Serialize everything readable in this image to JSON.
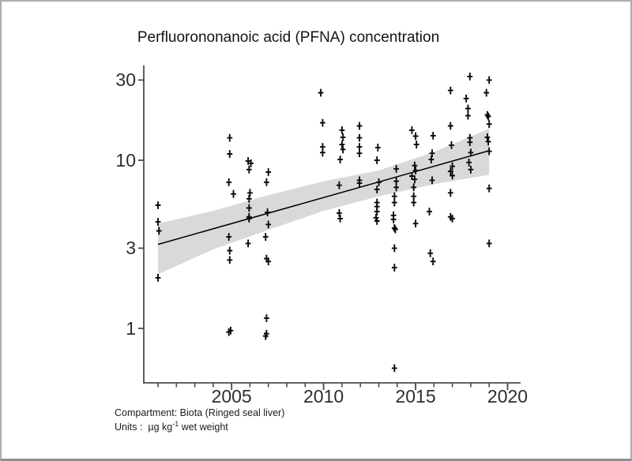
{
  "figure": {
    "title": "Perfluorononanoic acid (PFNA) concentration",
    "footnotes": {
      "compartment": "Compartment: Biota (Ringed seal liver)",
      "units_label": "Units :  ",
      "units_value": "µg kg",
      "units_superscript": "-1",
      "units_suffix": " wet weight"
    }
  },
  "chart_data": {
    "type": "scatter",
    "title": "Perfluorononanoic acid (PFNA) concentration",
    "xlabel": "",
    "ylabel": "",
    "x_axis": {
      "range": [
        2000.25,
        2020.7
      ],
      "ticks_major": [
        2005,
        2010,
        2015,
        2020
      ],
      "ticks_minor": [
        2001,
        2002,
        2003,
        2004,
        2005,
        2006,
        2007,
        2008,
        2009,
        2010,
        2011,
        2012,
        2013,
        2014,
        2015,
        2016,
        2017,
        2018,
        2019,
        2020
      ]
    },
    "y_axis": {
      "scale": "log",
      "range": [
        0.47,
        36.5
      ],
      "ticks": [
        30,
        10,
        3,
        1
      ]
    },
    "grid": "off",
    "legend": "none",
    "marker_style": "plus",
    "colors": {
      "marker": "#0a0a0a",
      "trend_line": "#000000",
      "confidence_band": "#d9d9d9",
      "axis": "#4b4b4b",
      "text": "#141414"
    },
    "trend_line": {
      "x": [
        2001,
        2019
      ],
      "y": [
        3.16,
        11.4
      ]
    },
    "confidence_band": {
      "years": [
        2001,
        2004,
        2007,
        2010,
        2013,
        2016,
        2019
      ],
      "upper": [
        4.2,
        5.0,
        6.2,
        7.5,
        8.7,
        11.2,
        15.4
      ],
      "lower": [
        2.1,
        2.95,
        3.85,
        5.0,
        6.1,
        7.2,
        8.2
      ]
    },
    "series": [
      {
        "name": "PFNA concentration (ug/kg wet weight, ringed seal liver)",
        "points": [
          [
            2001.0,
            5.4
          ],
          [
            2001.0,
            4.3
          ],
          [
            2001.05,
            3.8
          ],
          [
            2001.0,
            2.0
          ],
          [
            2004.9,
            13.6
          ],
          [
            2004.9,
            10.9
          ],
          [
            2004.85,
            7.4
          ],
          [
            2005.1,
            6.3
          ],
          [
            2004.85,
            3.5
          ],
          [
            2004.9,
            2.9
          ],
          [
            2004.9,
            2.55
          ],
          [
            2004.85,
            0.95
          ],
          [
            2004.95,
            0.97
          ],
          [
            2005.9,
            9.9
          ],
          [
            2006.05,
            9.6
          ],
          [
            2005.95,
            8.8
          ],
          [
            2006.0,
            6.4
          ],
          [
            2005.95,
            5.9
          ],
          [
            2005.95,
            5.2
          ],
          [
            2005.95,
            4.6
          ],
          [
            2005.95,
            4.5
          ],
          [
            2005.9,
            3.2
          ],
          [
            2007.0,
            8.5
          ],
          [
            2006.9,
            7.4
          ],
          [
            2006.95,
            4.9
          ],
          [
            2007.0,
            4.15
          ],
          [
            2006.85,
            3.5
          ],
          [
            2006.9,
            2.6
          ],
          [
            2007.0,
            2.5
          ],
          [
            2006.9,
            1.15
          ],
          [
            2006.85,
            0.9
          ],
          [
            2006.9,
            0.93
          ],
          [
            2009.85,
            25.2
          ],
          [
            2009.95,
            16.7
          ],
          [
            2009.95,
            12.0
          ],
          [
            2009.95,
            11.1
          ],
          [
            2010.85,
            7.1
          ],
          [
            2010.85,
            4.85
          ],
          [
            2011.0,
            15.1
          ],
          [
            2011.05,
            13.7
          ],
          [
            2011.0,
            12.4
          ],
          [
            2011.05,
            11.6
          ],
          [
            2010.9,
            10.1
          ],
          [
            2010.9,
            4.5
          ],
          [
            2011.95,
            16.0
          ],
          [
            2011.95,
            13.6
          ],
          [
            2011.95,
            12.0
          ],
          [
            2011.95,
            11.0
          ],
          [
            2011.95,
            7.6
          ],
          [
            2011.95,
            7.3
          ],
          [
            2012.95,
            11.9
          ],
          [
            2012.9,
            10.0
          ],
          [
            2013.0,
            7.4
          ],
          [
            2012.9,
            6.7
          ],
          [
            2012.9,
            5.6
          ],
          [
            2012.9,
            5.3
          ],
          [
            2012.9,
            4.95
          ],
          [
            2012.85,
            4.55
          ],
          [
            2012.9,
            4.35
          ],
          [
            2013.95,
            8.9
          ],
          [
            2013.95,
            7.5
          ],
          [
            2013.95,
            6.9
          ],
          [
            2013.85,
            6.1
          ],
          [
            2013.85,
            5.6
          ],
          [
            2013.8,
            4.7
          ],
          [
            2013.8,
            4.45
          ],
          [
            2013.85,
            3.95
          ],
          [
            2013.9,
            3.88
          ],
          [
            2013.85,
            3.0
          ],
          [
            2013.85,
            2.3
          ],
          [
            2013.85,
            0.58
          ],
          [
            2014.8,
            15.1
          ],
          [
            2014.8,
            8.05
          ],
          [
            2014.9,
            6.9
          ],
          [
            2014.9,
            6.1
          ],
          [
            2014.9,
            5.6
          ],
          [
            2015.0,
            13.9
          ],
          [
            2015.05,
            12.4
          ],
          [
            2014.95,
            9.3
          ],
          [
            2015.0,
            8.7
          ],
          [
            2014.95,
            7.7
          ],
          [
            2015.0,
            4.2
          ],
          [
            2015.95,
            14.0
          ],
          [
            2015.9,
            11.0
          ],
          [
            2015.85,
            10.1
          ],
          [
            2015.9,
            7.6
          ],
          [
            2015.75,
            4.95
          ],
          [
            2015.8,
            2.8
          ],
          [
            2015.95,
            2.5
          ],
          [
            2016.9,
            26.0
          ],
          [
            2016.9,
            16.0
          ],
          [
            2016.95,
            12.3
          ],
          [
            2017.0,
            9.2
          ],
          [
            2016.9,
            8.6
          ],
          [
            2017.0,
            8.1
          ],
          [
            2016.9,
            6.4
          ],
          [
            2016.9,
            4.6
          ],
          [
            2017.0,
            4.5
          ],
          [
            2017.95,
            31.5
          ],
          [
            2017.75,
            23.3
          ],
          [
            2017.85,
            20.3
          ],
          [
            2017.85,
            18.4
          ],
          [
            2017.95,
            13.6
          ],
          [
            2017.95,
            12.8
          ],
          [
            2018.0,
            11.1
          ],
          [
            2017.9,
            9.7
          ],
          [
            2018.0,
            8.8
          ],
          [
            2019.0,
            30.0
          ],
          [
            2018.85,
            25.2
          ],
          [
            2018.9,
            18.6
          ],
          [
            2018.95,
            18.2
          ],
          [
            2019.0,
            16.4
          ],
          [
            2018.9,
            13.7
          ],
          [
            2018.95,
            12.9
          ],
          [
            2019.0,
            11.3
          ],
          [
            2019.0,
            6.8
          ],
          [
            2019.0,
            3.2
          ]
        ]
      }
    ],
    "annotations": [
      "Compartment: Biota (Ringed seal liver)",
      "Units :  µg kg-1 wet weight"
    ]
  }
}
